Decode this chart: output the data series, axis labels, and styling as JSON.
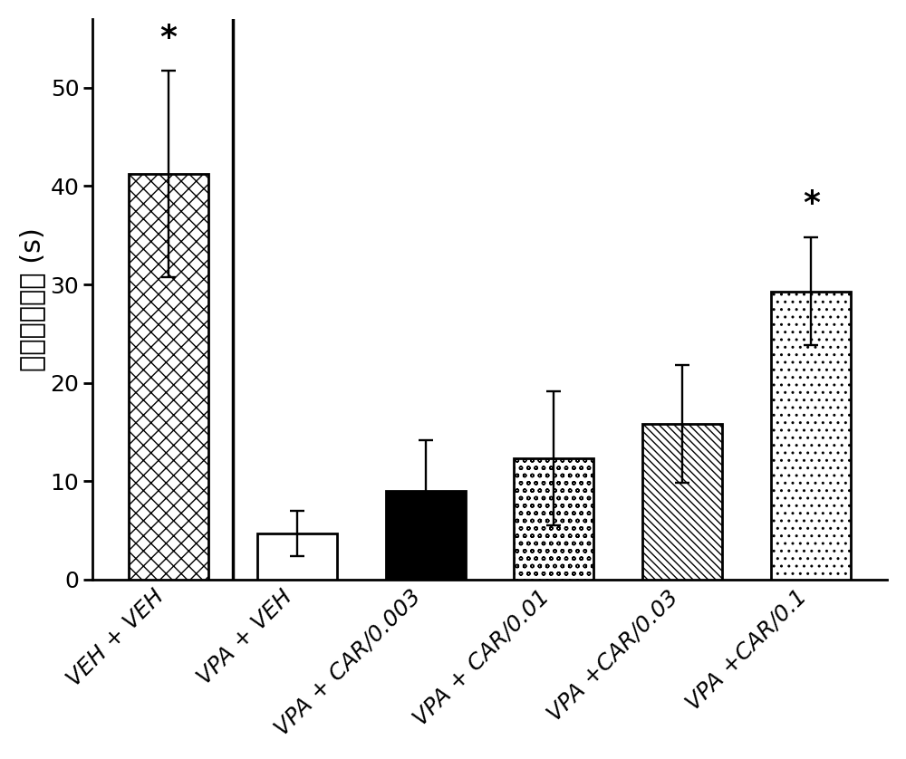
{
  "categories": [
    "VEH + VEH",
    "VPA + VEH",
    "VPA + CAR/0.003",
    "VPA + CAR/0.01",
    "VPA +CAR/0.03",
    "VPA +CAR/0.1"
  ],
  "values": [
    41.2,
    4.7,
    9.0,
    12.3,
    15.8,
    29.3
  ],
  "errors": [
    10.5,
    2.3,
    5.2,
    6.8,
    6.0,
    5.5
  ],
  "ylabel": "走动持续时间 (s)",
  "ylim": [
    0,
    57
  ],
  "yticks": [
    0,
    10,
    20,
    30,
    40,
    50
  ],
  "significance": [
    0,
    5
  ],
  "hatch_list": [
    "xx",
    "",
    "",
    "oo",
    "\\\\\\\\",
    ".."
  ],
  "face_list": [
    "white",
    "white",
    "black",
    "white",
    "white",
    "white"
  ],
  "background_color": "white",
  "fig_width": 10.0,
  "fig_height": 8.38,
  "dpi": 100,
  "tick_fontsize": 18,
  "ylabel_fontsize": 22,
  "xlabel_rotation": 45,
  "star_fontsize": 26,
  "bar_width": 0.62,
  "linewidth": 2.0,
  "vline_x": 0.5,
  "capsize": 6
}
